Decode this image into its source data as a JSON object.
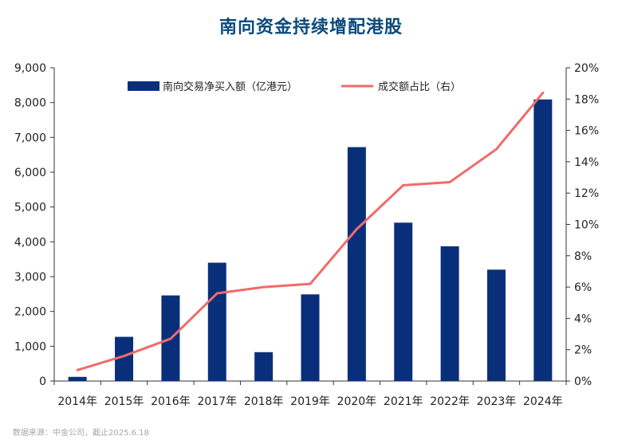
{
  "chart_data": {
    "type": "bar",
    "title": "南向资金持续增配港股",
    "categories": [
      "2014年",
      "2015年",
      "2016年",
      "2017年",
      "2018年",
      "2019年",
      "2020年",
      "2021年",
      "2022年",
      "2023年",
      "2024年"
    ],
    "series": [
      {
        "name": "南向交易净买入额（亿港元）",
        "type": "bar",
        "axis": "left",
        "color": "#0a2f7a",
        "values": [
          120,
          1270,
          2460,
          3400,
          830,
          2490,
          6720,
          4550,
          3870,
          3200,
          8090
        ]
      },
      {
        "name": "成交额占比（右）",
        "type": "line",
        "axis": "right",
        "color": "#f06a6a",
        "values": [
          0.7,
          1.6,
          2.7,
          5.6,
          6.0,
          6.2,
          9.7,
          12.5,
          12.7,
          14.8,
          18.4
        ]
      }
    ],
    "y_left": {
      "lim": [
        0,
        9000
      ],
      "ticks": [
        "0",
        "1,000",
        "2,000",
        "3,000",
        "4,000",
        "5,000",
        "6,000",
        "7,000",
        "8,000",
        "9,000"
      ]
    },
    "y_right": {
      "lim": [
        0,
        20
      ],
      "ticks": [
        "0%",
        "2%",
        "4%",
        "6%",
        "8%",
        "10%",
        "12%",
        "14%",
        "16%",
        "18%",
        "20%"
      ]
    },
    "grid": false,
    "legend": "top-center"
  },
  "source": "数据来源：中金公司，截止2025.6.18"
}
